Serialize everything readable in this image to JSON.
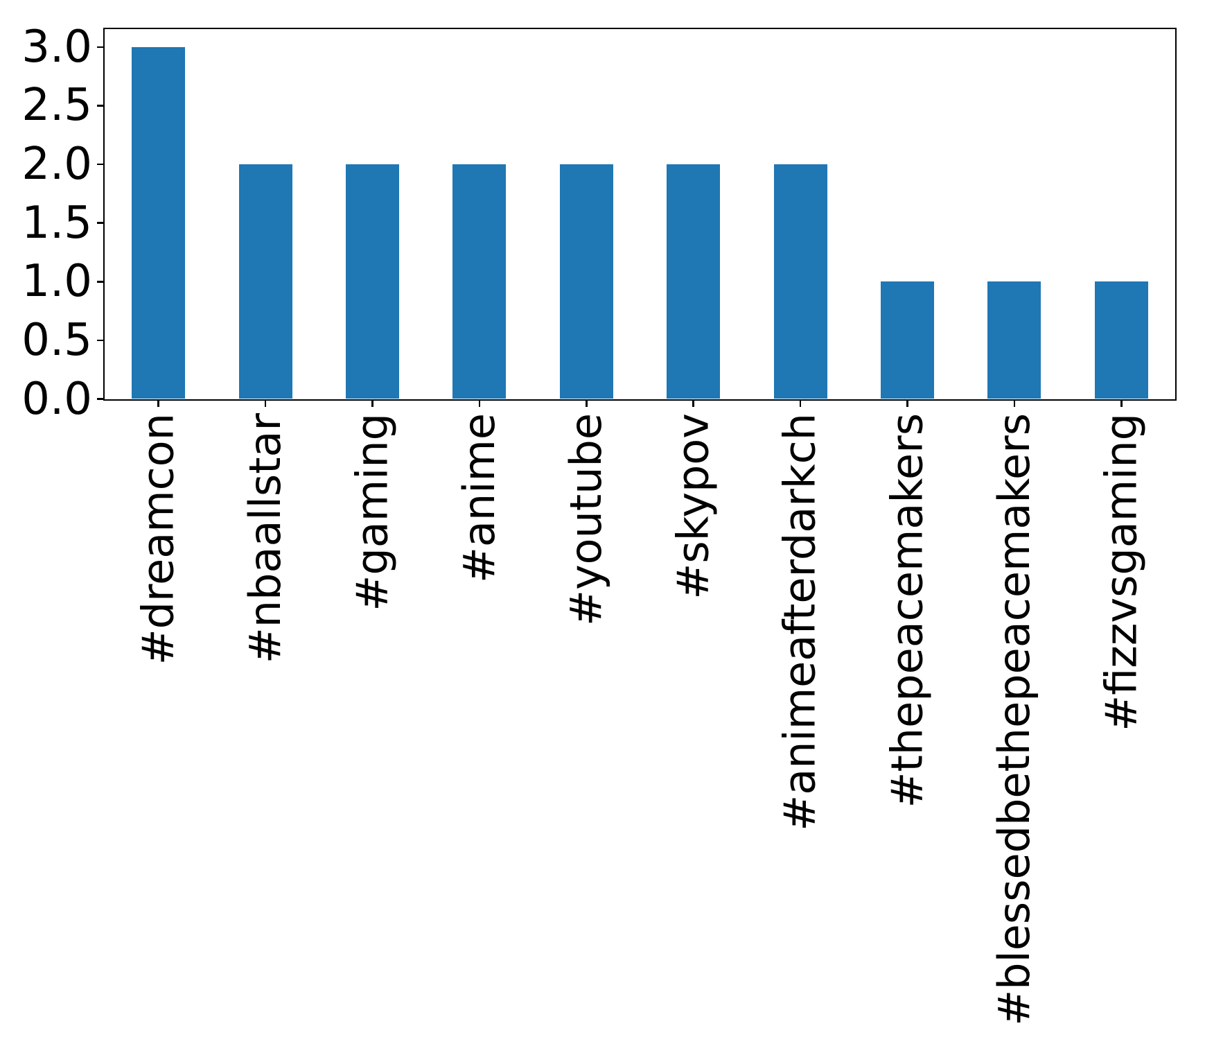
{
  "chart_data": {
    "type": "bar",
    "title": "",
    "xlabel": "",
    "ylabel": "",
    "categories": [
      "#dreamcon",
      "#nbaallstar",
      "#gaming",
      "#anime",
      "#youtube",
      "#skypov",
      "#animeafterdarkch",
      "#thepeacemakers",
      "#blessedbethepeacemakers",
      "#fizzvsgaming"
    ],
    "values": [
      3,
      2,
      2,
      2,
      2,
      2,
      2,
      1,
      1,
      1
    ],
    "ylim": [
      0,
      3.15
    ],
    "yticks": [
      0.0,
      0.5,
      1.0,
      1.5,
      2.0,
      2.5,
      3.0
    ],
    "ytick_labels": [
      "0.0",
      "0.5",
      "1.0",
      "1.5",
      "2.0",
      "2.5",
      "3.0"
    ],
    "x_tick_rotation": 90,
    "bar_width_fraction": 0.5,
    "grid": false,
    "legend": false,
    "colors": {
      "bar": "#1f77b4",
      "axis": "#000000",
      "background": "#ffffff"
    }
  }
}
